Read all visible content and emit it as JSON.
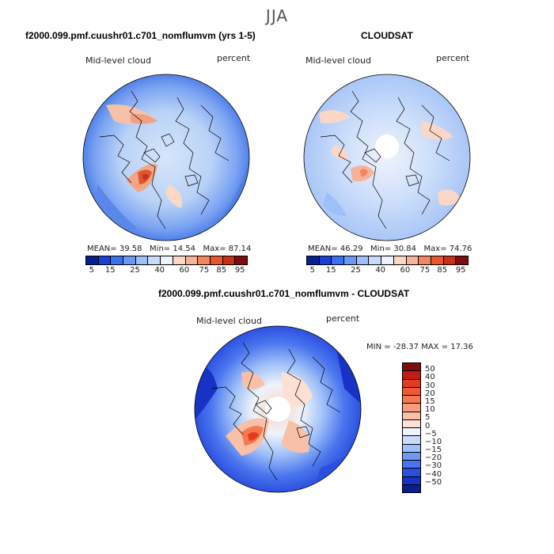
{
  "figure": {
    "season": "JJA"
  },
  "panels": [
    {
      "title": "f2000.099.pmf.cuushr01.c701_nomflumvm (yrs 1-5)",
      "field_label": "Mid-level cloud",
      "units": "percent",
      "mean_label": "MEAN=",
      "mean": "39.58",
      "min_label": "Min=",
      "min": "14.54",
      "max_label": "Max=",
      "max": "87.14"
    },
    {
      "title": "CLOUDSAT",
      "field_label": "Mid-level cloud",
      "units": "percent",
      "mean_label": "MEAN=",
      "mean": "46.29",
      "min_label": "Min=",
      "min": "30.84",
      "max_label": "Max=",
      "max": "74.76"
    },
    {
      "title": "f2000.099.pmf.cuushr01.c701_nomflumvm - CLOUDSAT",
      "field_label": "Mid-level cloud",
      "units": "percent",
      "range_text": "MIN = -28.37  MAX =  17.36"
    }
  ],
  "colorbar_abs": {
    "ticks": [
      "5",
      "15",
      "25",
      "40",
      "60",
      "75",
      "85",
      "95"
    ],
    "colors": [
      "#0a1f8f",
      "#1c3fd6",
      "#3b6ef0",
      "#6a98f5",
      "#9ec0f8",
      "#c7dcfb",
      "#eef3fb",
      "#fbd8c6",
      "#f7b29a",
      "#f38660",
      "#e9552f",
      "#c93018",
      "#7f0d0d"
    ]
  },
  "colorbar_diff": {
    "ticks": [
      "50",
      "40",
      "30",
      "20",
      "15",
      "10",
      "5",
      "0",
      "−5",
      "−10",
      "−15",
      "−20",
      "−30",
      "−40",
      "−50"
    ],
    "colors": [
      "#7f0d0d",
      "#c21d10",
      "#e53a1d",
      "#f2582f",
      "#f5784f",
      "#f79c7f",
      "#f9c0a8",
      "#fbe0d3",
      "#eef3fb",
      "#c7dcfb",
      "#9ec0f8",
      "#6f9af3",
      "#4a75ee",
      "#2a4fe0",
      "#1732c4",
      "#0a1e8e"
    ]
  }
}
